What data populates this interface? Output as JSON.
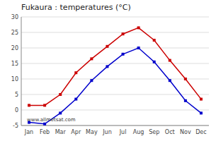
{
  "chart_data": {
    "type": "line",
    "title": "Fukaura : temperatures (°C)",
    "categories": [
      "Jan",
      "Feb",
      "Mar",
      "Apr",
      "May",
      "Jun",
      "Jul",
      "Aug",
      "Sep",
      "Oct",
      "Nov",
      "Dec"
    ],
    "series": [
      {
        "color": "#cc0000",
        "marker": "square",
        "line_style": "solid",
        "values": [
          1.5,
          1.5,
          5.0,
          12.0,
          16.5,
          20.5,
          24.5,
          26.5,
          22.5,
          16.0,
          10.0,
          3.5
        ]
      },
      {
        "color": "#0000cc",
        "marker": "square",
        "line_style": "solid",
        "values": [
          -4.0,
          -4.5,
          -1.0,
          3.5,
          9.5,
          14.0,
          18.0,
          20.0,
          15.5,
          9.5,
          3.0,
          -1.0
        ]
      }
    ],
    "ylim": [
      -5,
      30
    ],
    "yticks": [
      -5,
      0,
      5,
      10,
      15,
      20,
      25,
      30
    ],
    "grid": true,
    "annotations": [
      "www.allmetsat.com"
    ]
  }
}
